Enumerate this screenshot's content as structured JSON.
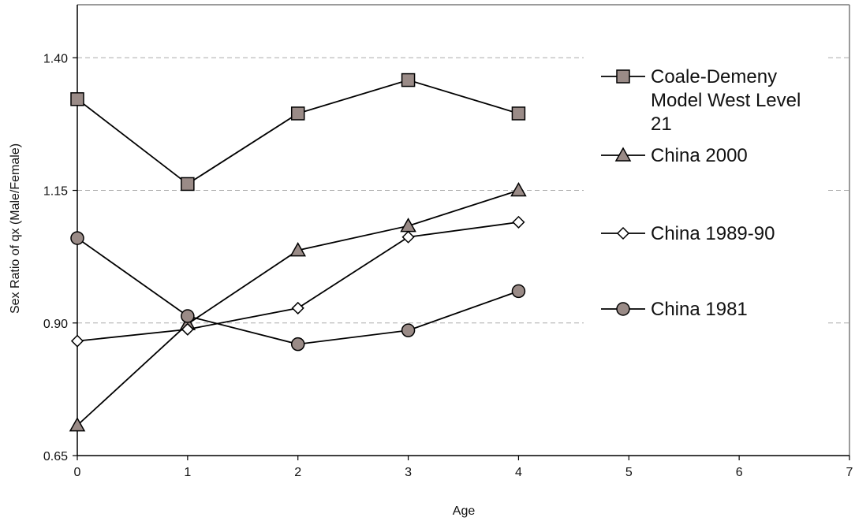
{
  "chart_data": {
    "type": "line",
    "title": "",
    "xlabel": "Age",
    "ylabel": "Sex Ratio of qx (Male/Female)",
    "xlim": [
      0,
      7
    ],
    "ylim": [
      0.65,
      1.5
    ],
    "x_ticks": [
      "0",
      "1",
      "2",
      "3",
      "4",
      "5",
      "6",
      "7"
    ],
    "y_ticks": [
      "0.65",
      "0.90",
      "1.15",
      "1.40"
    ],
    "y_tick_values": [
      0.65,
      0.9,
      1.15,
      1.4
    ],
    "grid": "horizontal dashed",
    "legend_position": "right",
    "x": [
      0,
      1,
      2,
      3,
      4
    ],
    "series": [
      {
        "name": [
          "Coale-Demeny",
          "Model West Level",
          "21"
        ],
        "marker": "square",
        "values": [
          1.322,
          1.162,
          1.295,
          1.358,
          1.295
        ]
      },
      {
        "name": [
          "China 2000"
        ],
        "marker": "triangle",
        "values": [
          0.707,
          0.898,
          1.037,
          1.083,
          1.15
        ]
      },
      {
        "name": [
          "China 1989-90"
        ],
        "marker": "diamond",
        "values": [
          0.866,
          0.888,
          0.928,
          1.062,
          1.09
        ]
      },
      {
        "name": [
          "China 1981"
        ],
        "marker": "circle",
        "values": [
          1.06,
          0.913,
          0.86,
          0.886,
          0.96
        ]
      }
    ],
    "colors": {
      "line": "#000000",
      "marker_fill": "#9a8b87",
      "open_marker_fill": "#ffffff",
      "grid": "#aaaaaa",
      "frame": "#7a7a7a"
    }
  }
}
